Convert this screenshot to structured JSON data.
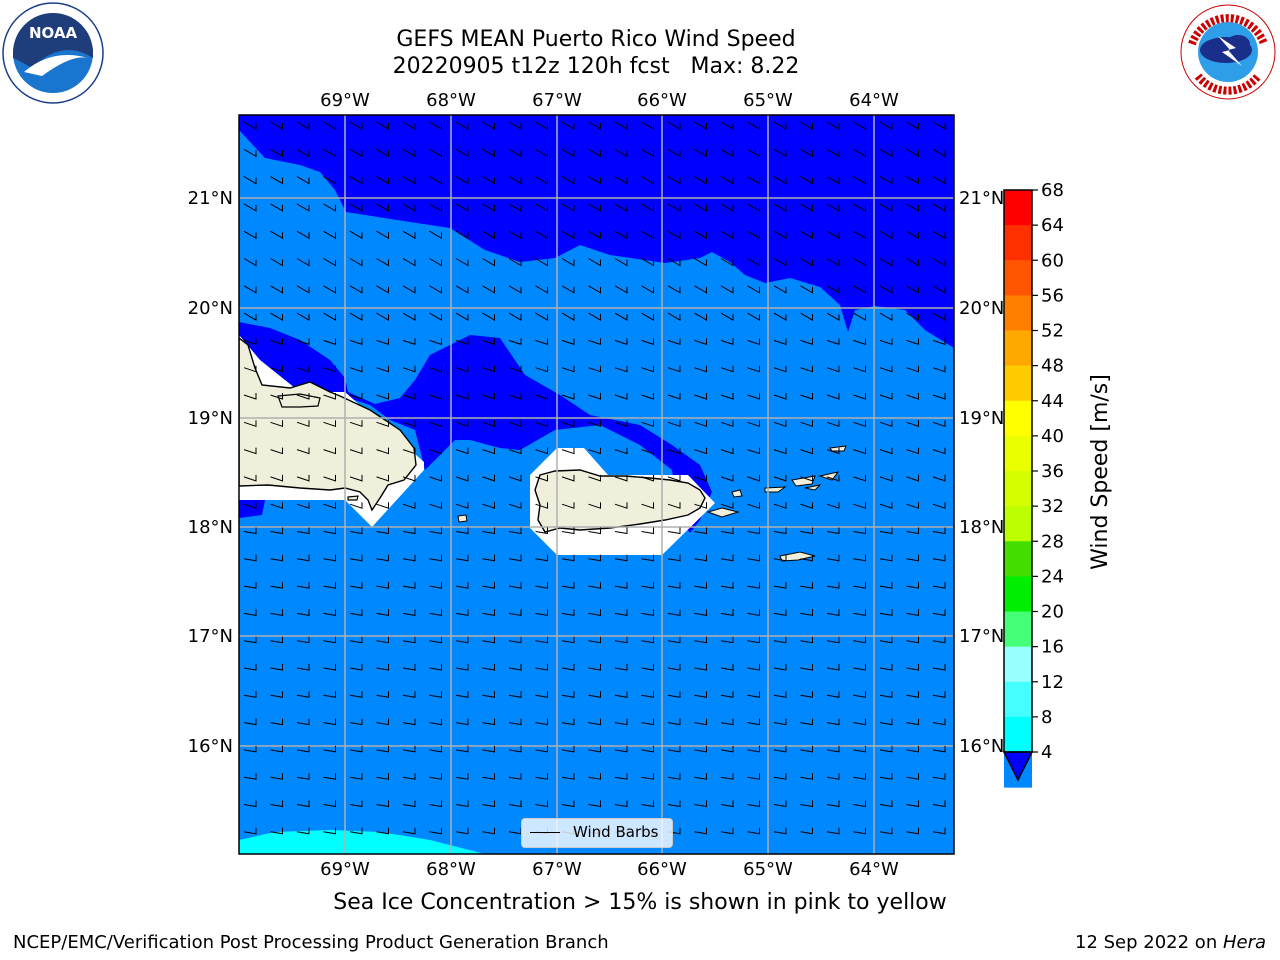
{
  "title": {
    "line1": "GEFS MEAN Puerto Rico Wind Speed",
    "line2": "20220905 t12z 120h fcst   Max: 8.22"
  },
  "logos": {
    "left": "noaa-logo",
    "right": "national-weather-service-logo"
  },
  "map": {
    "lon_labels": [
      "69°W",
      "68°W",
      "67°W",
      "66°W",
      "65°W",
      "64°W"
    ],
    "lat_labels": [
      "21°N",
      "20°N",
      "19°N",
      "18°N",
      "17°N",
      "16°N"
    ],
    "legend_label": "Wind Barbs"
  },
  "colorbar": {
    "label": "Wind Speed [m/s]",
    "ticks": [
      "68",
      "64",
      "60",
      "56",
      "52",
      "48",
      "44",
      "40",
      "36",
      "32",
      "28",
      "24",
      "20",
      "16",
      "12",
      "8",
      "4"
    ],
    "colors": [
      "#ff0000",
      "#ff3000",
      "#ff5500",
      "#ff8000",
      "#ffa800",
      "#ffcc00",
      "#ffff00",
      "#eaff00",
      "#d5ff00",
      "#bbff00",
      "#44dd00",
      "#00ee00",
      "#44ff77",
      "#99ffff",
      "#44ffff",
      "#00ffff",
      "#0088ff"
    ],
    "extend_color": "#0000ff"
  },
  "caption": "Sea Ice Concentration > 15% is shown in pink to yellow",
  "footer": {
    "left": "NCEP/EMC/Verification Post Processing Product Generation Branch",
    "right_date": "12 Sep 2022 on ",
    "right_machine": "Hera"
  }
}
